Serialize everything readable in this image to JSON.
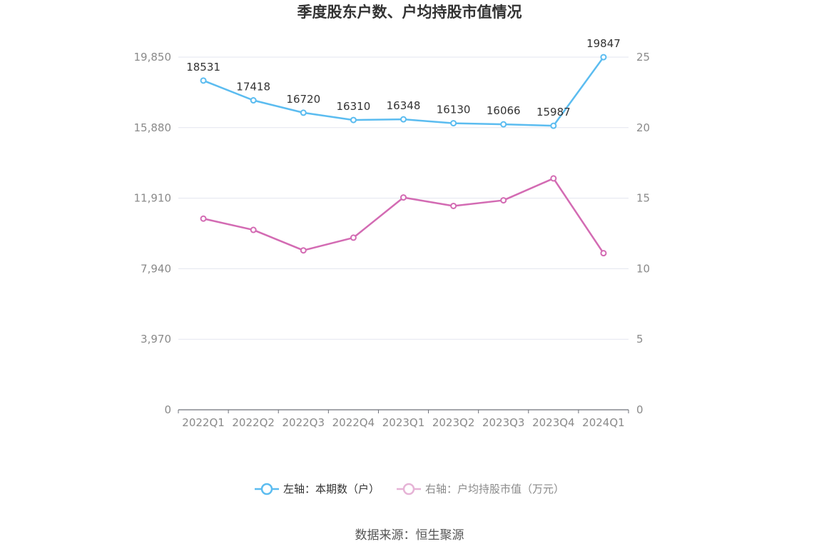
{
  "chart_data": {
    "type": "line",
    "title": "季度股东户数、户均持股市值情况",
    "categories": [
      "2022Q1",
      "2022Q2",
      "2022Q3",
      "2022Q4",
      "2023Q1",
      "2023Q2",
      "2023Q3",
      "2023Q4",
      "2024Q1"
    ],
    "left_axis": {
      "ticks": [
        "0",
        "3,970",
        "7,940",
        "11,910",
        "15,880",
        "19,850"
      ],
      "range": [
        0,
        19850
      ]
    },
    "right_axis": {
      "ticks": [
        "0",
        "5",
        "10",
        "15",
        "20",
        "25"
      ],
      "range": [
        0,
        25
      ]
    },
    "series": [
      {
        "name": "左轴：本期数（户）",
        "axis": "left",
        "color": "#5bbcf0",
        "values": [
          18531,
          17418,
          16720,
          16310,
          16348,
          16130,
          16066,
          15987,
          19847
        ],
        "labels": [
          "18531",
          "17418",
          "16720",
          "16310",
          "16348",
          "16130",
          "16066",
          "15987",
          "19847"
        ]
      },
      {
        "name": "右轴：户均持股市值（万元）",
        "axis": "right",
        "color": "#d36bb3",
        "values": [
          13.55,
          12.75,
          11.3,
          12.2,
          15.05,
          14.45,
          14.85,
          16.4,
          11.1
        ]
      }
    ],
    "grid": true,
    "legend_position": "bottom-center",
    "source": "数据来源：恒生聚源"
  }
}
